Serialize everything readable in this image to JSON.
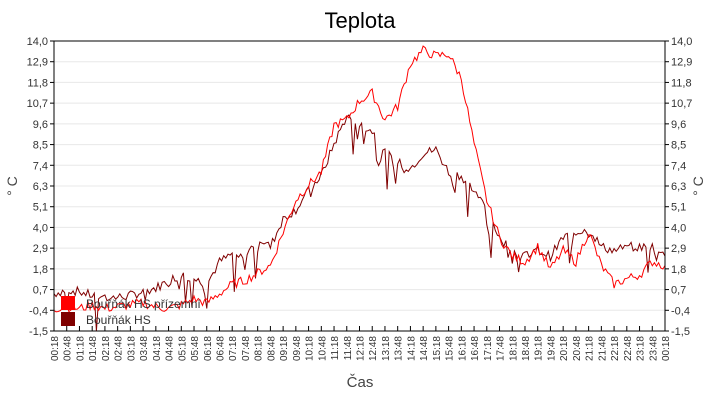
{
  "chart_data": {
    "type": "line",
    "title": "Teplota",
    "xlabel": "Čas",
    "ylabel": "° C",
    "ylim": [
      -1.5,
      14.0
    ],
    "yticks": [
      "14,0",
      "12,9",
      "11,8",
      "10,7",
      "9,6",
      "8,5",
      "7,4",
      "6,3",
      "5,1",
      "4,0",
      "2,9",
      "1,8",
      "0,7",
      "-0,4",
      "-1,5"
    ],
    "grid": true,
    "legend_position": "inside-bottom-left",
    "x": [
      "00:18",
      "00:48",
      "01:18",
      "01:48",
      "02:18",
      "02:48",
      "03:18",
      "03:48",
      "04:18",
      "04:48",
      "05:18",
      "05:48",
      "06:18",
      "06:48",
      "07:18",
      "07:48",
      "08:18",
      "08:48",
      "09:18",
      "09:48",
      "10:18",
      "10:48",
      "11:18",
      "11:48",
      "12:18",
      "12:48",
      "13:18",
      "13:48",
      "14:18",
      "14:48",
      "15:18",
      "15:48",
      "16:18",
      "16:48",
      "17:18",
      "17:48",
      "18:18",
      "18:48",
      "19:18",
      "19:48",
      "20:18",
      "20:48",
      "21:18",
      "21:48",
      "22:18",
      "22:48",
      "23:18",
      "23:48",
      "00:18"
    ],
    "series": [
      {
        "name": "Bouřňák HS přízemní",
        "color": "#ff0000",
        "values": [
          -0.3,
          -0.2,
          -0.3,
          -0.1,
          -0.3,
          -0.2,
          -0.1,
          0.0,
          -0.2,
          -0.3,
          -0.1,
          0.2,
          0.0,
          0.5,
          1.0,
          1.2,
          1.6,
          2.0,
          3.8,
          5.5,
          6.3,
          7.0,
          9.5,
          9.8,
          10.8,
          11.2,
          9.8,
          10.5,
          12.8,
          13.5,
          13.2,
          13.3,
          12.0,
          8.5,
          5.5,
          3.5,
          2.5,
          2.2,
          3.0,
          1.8,
          2.8,
          2.2,
          3.8,
          2.0,
          1.0,
          1.3,
          1.5,
          2.2,
          2.0
        ]
      },
      {
        "name": "Bouřňák HS",
        "color": "#800000",
        "values": [
          0.5,
          0.7,
          0.6,
          0.4,
          0.3,
          0.3,
          0.4,
          0.6,
          0.8,
          1.2,
          1.5,
          1.3,
          1.0,
          2.2,
          2.6,
          2.4,
          3.5,
          3.0,
          4.5,
          5.0,
          6.0,
          6.8,
          8.5,
          10.0,
          9.5,
          9.2,
          8.0,
          7.5,
          7.2,
          8.0,
          8.2,
          7.0,
          6.8,
          6.0,
          5.0,
          3.5,
          2.8,
          2.5,
          2.8,
          2.5,
          3.5,
          3.8,
          4.0,
          3.0,
          2.8,
          3.0,
          3.0,
          3.0,
          2.5
        ]
      }
    ]
  },
  "legend": {
    "items": [
      {
        "label": "Bouřňák HS přízemní",
        "color": "#ff0000"
      },
      {
        "label": "Bouřňák HS",
        "color": "#800000"
      }
    ]
  }
}
